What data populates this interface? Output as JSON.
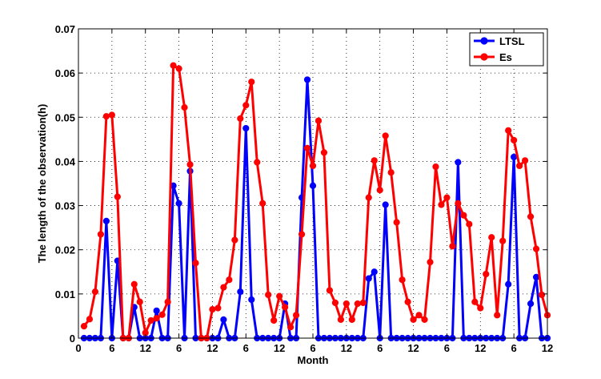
{
  "chart_data": {
    "type": "line",
    "title": "",
    "xlabel": "Month",
    "ylabel": "The length of the observation(h)",
    "x": [
      1,
      2,
      3,
      4,
      5,
      6,
      7,
      8,
      9,
      10,
      11,
      12,
      13,
      14,
      15,
      16,
      17,
      18,
      19,
      20,
      21,
      22,
      23,
      24,
      25,
      26,
      27,
      28,
      29,
      30,
      31,
      32,
      33,
      34,
      35,
      36,
      37,
      38,
      39,
      40,
      41,
      42,
      43,
      44,
      45,
      46,
      47,
      48,
      49,
      50,
      51,
      52,
      53,
      54,
      55,
      56,
      57,
      58,
      59,
      60,
      61,
      62,
      63,
      64,
      65,
      66,
      67,
      68,
      69,
      70,
      71,
      72,
      73,
      74,
      75,
      76,
      77,
      78,
      79,
      80,
      81,
      82,
      83,
      84
    ],
    "xlim": [
      0,
      84
    ],
    "xticks": [
      0,
      6,
      12,
      18,
      24,
      30,
      36,
      42,
      48,
      54,
      60,
      66,
      72,
      78,
      84
    ],
    "xtick_labels": [
      "0",
      "6",
      "12",
      "6",
      "12",
      "6",
      "12",
      "6",
      "12",
      "6",
      "12",
      "6",
      "12",
      "6",
      "12"
    ],
    "ylim": [
      0,
      0.07
    ],
    "yticks": [
      0,
      0.01,
      0.02,
      0.03,
      0.04,
      0.05,
      0.06,
      0.07
    ],
    "ytick_labels": [
      "0",
      "0.01",
      "0.02",
      "0.03",
      "0.04",
      "0.05",
      "0.06",
      "0.07"
    ],
    "grid": true,
    "legend_position": "top-right",
    "series": [
      {
        "name": "LTSL",
        "color": "#0000ff",
        "values": [
          0,
          0,
          0,
          0,
          0.0265,
          0,
          0.0175,
          0,
          0,
          0.007,
          0,
          0,
          0,
          0.0062,
          0,
          0,
          0.0345,
          0.0305,
          0,
          0.0378,
          0,
          0,
          0,
          0,
          0,
          0.0042,
          0,
          0,
          0.0105,
          0.0475,
          0.0087,
          0,
          0,
          0,
          0,
          0,
          0.0078,
          0,
          0,
          0.0318,
          0.0585,
          0.0345,
          0,
          0,
          0,
          0,
          0,
          0,
          0,
          0,
          0,
          0.0135,
          0.015,
          0,
          0.0302,
          0,
          0,
          0,
          0,
          0,
          0,
          0,
          0,
          0,
          0,
          0,
          0,
          0.0398,
          0,
          0,
          0,
          0,
          0,
          0,
          0,
          0,
          0.0122,
          0.041,
          0,
          0,
          0.0078,
          0.0138,
          0,
          0
        ]
      },
      {
        "name": "Es",
        "color": "#ff0000",
        "values": [
          0.0027,
          0.0043,
          0.0105,
          0.0235,
          0.0502,
          0.0505,
          0.032,
          0,
          0,
          0.0122,
          0.0082,
          0.0012,
          0.004,
          0.0045,
          0.0053,
          0.0082,
          0.0617,
          0.061,
          0.0522,
          0.0393,
          0.017,
          0,
          0,
          0.0065,
          0.0068,
          0.0115,
          0.0132,
          0.0222,
          0.0497,
          0.0527,
          0.058,
          0.0398,
          0.0305,
          0.0098,
          0.004,
          0.0095,
          0.007,
          0.0025,
          0.0052,
          0.0235,
          0.043,
          0.039,
          0.0492,
          0.042,
          0.0108,
          0.008,
          0.0042,
          0.0078,
          0.0042,
          0.0078,
          0.008,
          0.0318,
          0.0402,
          0.0335,
          0.0458,
          0.0375,
          0.0262,
          0.0132,
          0.0082,
          0.0042,
          0.0052,
          0.0042,
          0.0172,
          0.0388,
          0.0302,
          0.0318,
          0.0208,
          0.0305,
          0.0278,
          0.0258,
          0.0082,
          0.0068,
          0.0145,
          0.0228,
          0.0052,
          0.022,
          0.047,
          0.0448,
          0.039,
          0.0402,
          0.0275,
          0.0202,
          0.0098,
          0.0052
        ]
      }
    ]
  }
}
